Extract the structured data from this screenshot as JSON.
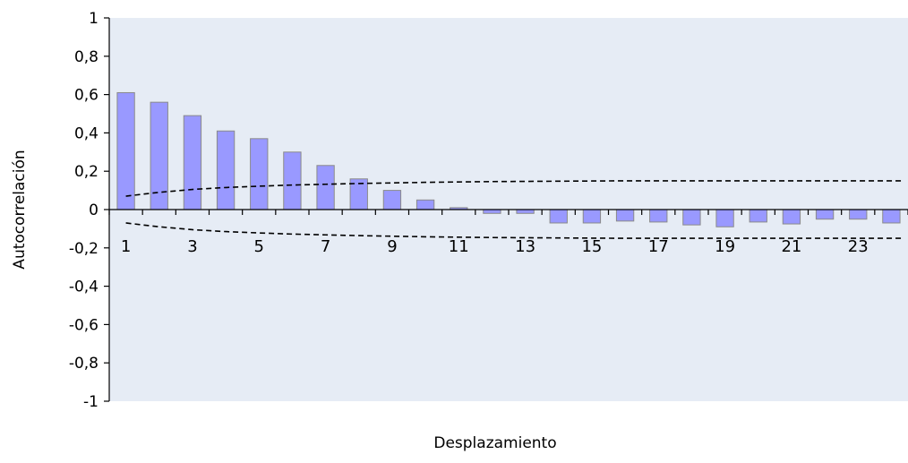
{
  "chart_data": {
    "type": "bar",
    "xlabel": "Desplazamiento",
    "ylabel": "Autocorrelación",
    "ylim": [
      -1,
      1
    ],
    "y_ticks": [
      {
        "value": 1,
        "label": "1"
      },
      {
        "value": 0.8,
        "label": "0,8"
      },
      {
        "value": 0.6,
        "label": "0,6"
      },
      {
        "value": 0.4,
        "label": "0,4"
      },
      {
        "value": 0.2,
        "label": "0,2"
      },
      {
        "value": 0,
        "label": "0"
      },
      {
        "value": -0.2,
        "label": "-0,2"
      },
      {
        "value": -0.4,
        "label": "-0,4"
      },
      {
        "value": -0.6,
        "label": "-0,6"
      },
      {
        "value": -0.8,
        "label": "-0,8"
      },
      {
        "value": -1,
        "label": "-1"
      }
    ],
    "x_tick_labels": [
      "1",
      "3",
      "5",
      "7",
      "9",
      "11",
      "13",
      "15",
      "17",
      "19",
      "21",
      "23"
    ],
    "categories": [
      1,
      2,
      3,
      4,
      5,
      6,
      7,
      8,
      9,
      10,
      11,
      12,
      13,
      14,
      15,
      16,
      17,
      18,
      19,
      20,
      21,
      22,
      23,
      24
    ],
    "values": [
      0.61,
      0.56,
      0.49,
      0.41,
      0.37,
      0.3,
      0.23,
      0.16,
      0.1,
      0.05,
      0.01,
      -0.02,
      -0.02,
      -0.07,
      -0.07,
      -0.06,
      -0.065,
      -0.08,
      -0.09,
      -0.065,
      -0.075,
      -0.05,
      -0.05,
      -0.07
    ],
    "confidence_upper": [
      0.07,
      0.09,
      0.105,
      0.115,
      0.122,
      0.128,
      0.132,
      0.136,
      0.139,
      0.142,
      0.144,
      0.146,
      0.147,
      0.148,
      0.149,
      0.15,
      0.15,
      0.15,
      0.15,
      0.15,
      0.15,
      0.15,
      0.15,
      0.15
    ],
    "confidence_lower": [
      -0.07,
      -0.09,
      -0.105,
      -0.115,
      -0.122,
      -0.128,
      -0.132,
      -0.136,
      -0.139,
      -0.142,
      -0.144,
      -0.146,
      -0.147,
      -0.148,
      -0.149,
      -0.15,
      -0.15,
      -0.15,
      -0.15,
      -0.15,
      -0.15,
      -0.15,
      -0.15,
      -0.15
    ],
    "grid": false,
    "colors": {
      "bar": "#9999ff",
      "bar_edge": "#8a8a8a",
      "plot_bg": "#e6ecf5",
      "axis": "#000000",
      "confidence": "#000000"
    }
  }
}
